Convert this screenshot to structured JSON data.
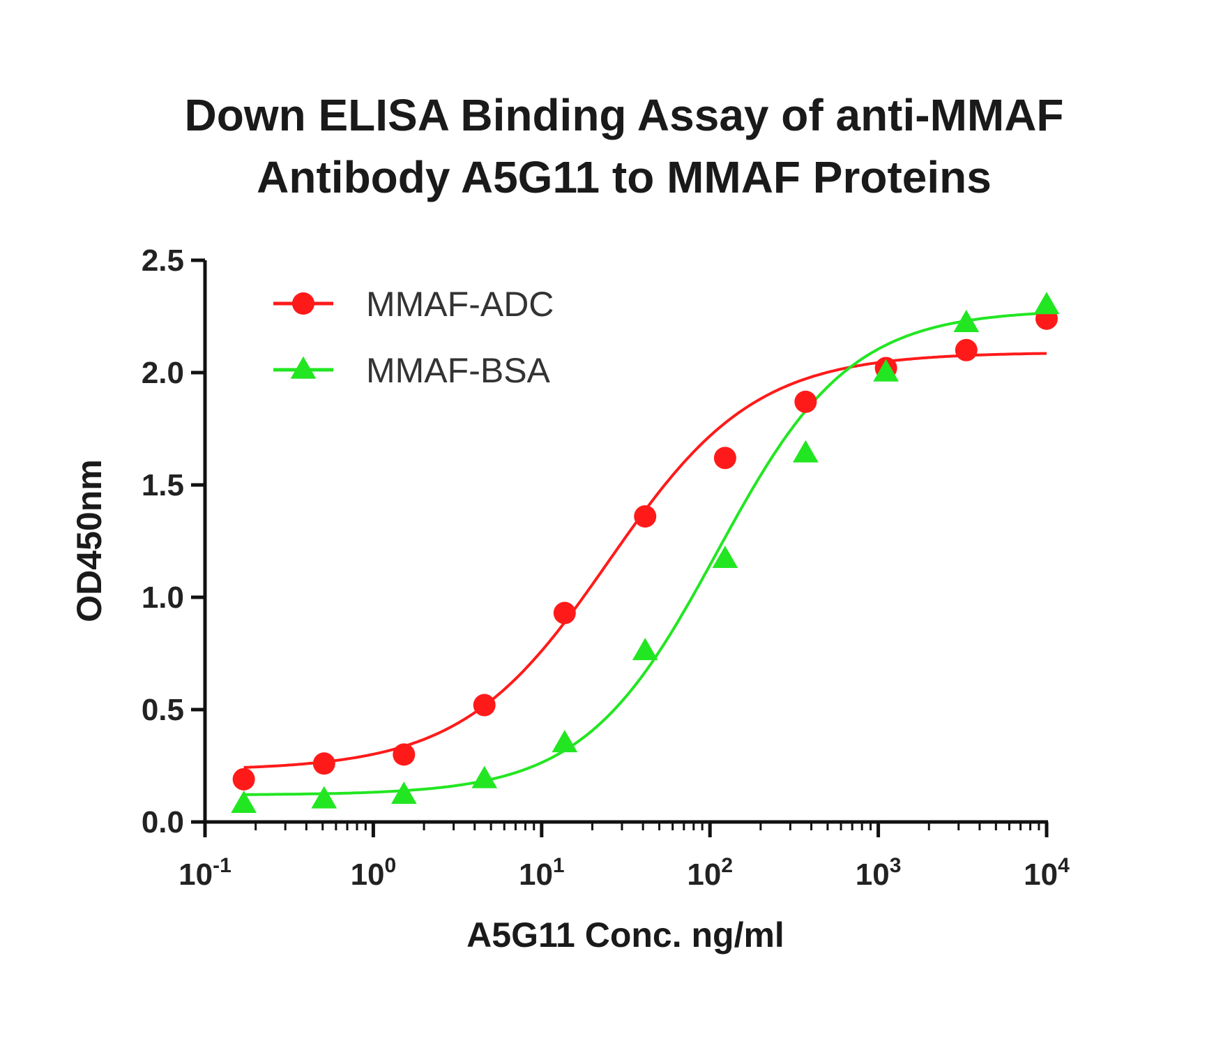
{
  "chart_data": {
    "type": "scatter",
    "title": [
      "Down  ELISA Binding Assay of anti-MMAF",
      "Antibody A5G11 to MMAF Proteins"
    ],
    "xlabel": "A5G11 Conc. ng/ml",
    "ylabel": "OD450nm",
    "xscale": "log",
    "xlim": [
      0.1,
      10000
    ],
    "ylim": [
      0,
      2.5
    ],
    "xticks": [
      {
        "base": "10",
        "exp": "-1"
      },
      {
        "base": "10",
        "exp": "0"
      },
      {
        "base": "10",
        "exp": "1"
      },
      {
        "base": "10",
        "exp": "2"
      },
      {
        "base": "10",
        "exp": "3"
      },
      {
        "base": "10",
        "exp": "4"
      }
    ],
    "yticks": [
      "0.0",
      "0.5",
      "1.0",
      "1.5",
      "2.0",
      "2.5"
    ],
    "grid": false,
    "legend_position": "top-left",
    "x": [
      0.17,
      0.51,
      1.52,
      4.57,
      13.7,
      41.2,
      123,
      370,
      1111,
      3333,
      10000
    ],
    "series": [
      {
        "name": "MMAF-ADC",
        "color": "#ff1a1a",
        "marker": "circle",
        "values": [
          0.19,
          0.26,
          0.3,
          0.52,
          0.93,
          1.36,
          1.62,
          1.87,
          2.02,
          2.1,
          2.24
        ],
        "fit": {
          "bottom": 0.23,
          "top": 2.09,
          "ec50": 25,
          "hill": 1.0
        }
      },
      {
        "name": "MMAF-BSA",
        "color": "#22e622",
        "marker": "triangle",
        "values": [
          0.08,
          0.1,
          0.12,
          0.19,
          0.35,
          0.76,
          1.17,
          1.64,
          2.0,
          2.22,
          2.3
        ],
        "fit": {
          "bottom": 0.12,
          "top": 2.28,
          "ec50": 110,
          "hill": 1.1
        }
      }
    ]
  }
}
